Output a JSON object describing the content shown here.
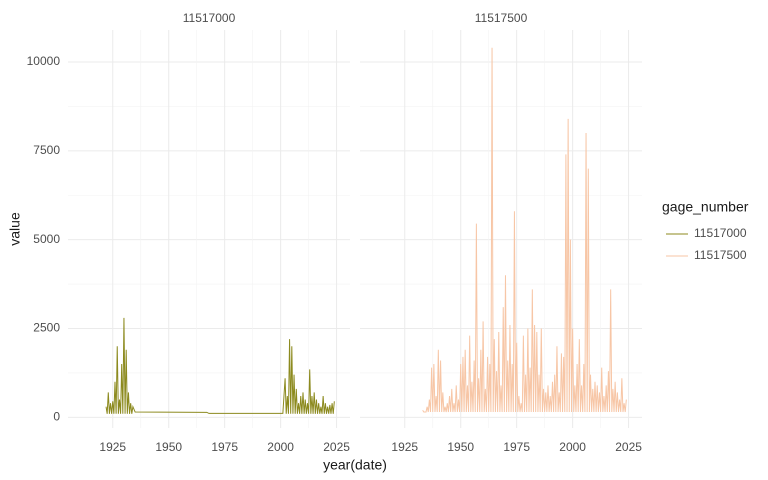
{
  "chart_data": {
    "type": "line",
    "xlabel": "year(date)",
    "ylabel": "value",
    "legend_title": "gage_number",
    "xlim": [
      1905,
      2031
    ],
    "xticks": [
      1925,
      1950,
      1975,
      2000,
      2025
    ],
    "ylim": [
      -300,
      10900
    ],
    "yticks": [
      0,
      2500,
      5000,
      7500,
      10000
    ],
    "grid": true,
    "legend": "right",
    "series": [
      {
        "name": "11517000",
        "color": "#8c8a1e",
        "x": [
          1922,
          1922.5,
          1923,
          1923.5,
          1924,
          1924.5,
          1925,
          1925.5,
          1926,
          1926.5,
          1927,
          1927.5,
          1928,
          1928.5,
          1929,
          1929.5,
          1930,
          1930.5,
          1931,
          1931.5,
          1932,
          1932.5,
          1933,
          1933.5,
          1934,
          1935,
          1967,
          1968,
          2001,
          2002,
          2002.5,
          2003,
          2003.5,
          2004,
          2004.5,
          2005,
          2005.5,
          2006,
          2006.5,
          2007,
          2007.5,
          2008,
          2008.5,
          2009,
          2009.5,
          2010,
          2010.5,
          2011,
          2011.5,
          2012,
          2012.5,
          2013,
          2013.5,
          2014,
          2014.5,
          2015,
          2015.5,
          2016,
          2016.5,
          2017,
          2017.5,
          2018,
          2018.5,
          2019,
          2019.5,
          2020,
          2020.5,
          2021,
          2021.5,
          2022,
          2022.5,
          2023,
          2023.5,
          2024
        ],
        "values": [
          300,
          100,
          700,
          100,
          400,
          100,
          450,
          100,
          1000,
          100,
          2000,
          100,
          500,
          100,
          1500,
          100,
          2800,
          100,
          1900,
          100,
          700,
          100,
          400,
          100,
          300,
          150,
          140,
          110,
          110,
          1100,
          100,
          600,
          100,
          2200,
          100,
          2000,
          100,
          1200,
          100,
          800,
          100,
          400,
          100,
          600,
          100,
          700,
          100,
          500,
          100,
          400,
          100,
          1350,
          100,
          600,
          100,
          700,
          100,
          500,
          100,
          400,
          100,
          300,
          100,
          600,
          100,
          400,
          100,
          300,
          100,
          350,
          100,
          400,
          100,
          450
        ]
      },
      {
        "name": "11517500",
        "color": "#f7c6a6",
        "x": [
          1933,
          1933.5,
          1934,
          1934.5,
          1935,
          1935.5,
          1936,
          1936.5,
          1937,
          1937.5,
          1938,
          1938.5,
          1939,
          1939.5,
          1940,
          1940.5,
          1941,
          1941.5,
          1942,
          1942.5,
          1943,
          1943.5,
          1944,
          1944.5,
          1945,
          1945.5,
          1946,
          1946.5,
          1947,
          1947.5,
          1948,
          1948.5,
          1949,
          1949.5,
          1950,
          1950.5,
          1951,
          1951.5,
          1952,
          1952.5,
          1953,
          1953.5,
          1954,
          1954.5,
          1955,
          1955.5,
          1956,
          1956.5,
          1957,
          1957.5,
          1958,
          1958.5,
          1959,
          1959.5,
          1960,
          1960.5,
          1961,
          1961.5,
          1962,
          1962.5,
          1963,
          1963.5,
          1964,
          1964.5,
          1965,
          1965.5,
          1966,
          1966.5,
          1967,
          1967.5,
          1968,
          1968.5,
          1969,
          1969.5,
          1970,
          1970.5,
          1971,
          1971.5,
          1972,
          1972.5,
          1973,
          1973.5,
          1974,
          1974.5,
          1975,
          1975.5,
          1976,
          1976.5,
          1977,
          1977.5,
          1978,
          1978.5,
          1979,
          1979.5,
          1980,
          1980.5,
          1981,
          1981.5,
          1982,
          1982.5,
          1983,
          1983.5,
          1984,
          1984.5,
          1985,
          1985.5,
          1986,
          1986.5,
          1987,
          1987.5,
          1988,
          1988.5,
          1989,
          1989.5,
          1990,
          1990.5,
          1991,
          1991.5,
          1992,
          1992.5,
          1993,
          1993.5,
          1994,
          1994.5,
          1995,
          1995.5,
          1996,
          1996.5,
          1997,
          1997.5,
          1998,
          1998.5,
          1999,
          1999.5,
          2000,
          2000.5,
          2001,
          2001.5,
          2002,
          2002.5,
          2003,
          2003.5,
          2004,
          2004.5,
          2005,
          2005.5,
          2006,
          2006.5,
          2007,
          2007.5,
          2008,
          2008.5,
          2009,
          2009.5,
          2010,
          2010.5,
          2011,
          2011.5,
          2012,
          2012.5,
          2013,
          2013.5,
          2014,
          2014.5,
          2015,
          2015.5,
          2016,
          2016.5,
          2017,
          2017.5,
          2018,
          2018.5,
          2019,
          2019.5,
          2020,
          2020.5,
          2021,
          2021.5,
          2022,
          2022.5,
          2023,
          2023.5,
          2024
        ],
        "values": [
          200,
          150,
          150,
          150,
          300,
          150,
          500,
          150,
          1400,
          150,
          1500,
          150,
          600,
          150,
          1900,
          150,
          1600,
          150,
          700,
          150,
          300,
          150,
          400,
          150,
          600,
          150,
          800,
          150,
          400,
          150,
          900,
          150,
          500,
          150,
          1500,
          150,
          1700,
          150,
          1900,
          150,
          900,
          150,
          2300,
          150,
          1000,
          150,
          1600,
          150,
          5450,
          150,
          1100,
          150,
          1900,
          150,
          2700,
          150,
          800,
          150,
          1700,
          150,
          1500,
          150,
          10400,
          150,
          2200,
          150,
          1300,
          150,
          2400,
          150,
          900,
          150,
          3100,
          150,
          4000,
          150,
          1600,
          150,
          2600,
          150,
          1500,
          150,
          5800,
          150,
          2100,
          150,
          600,
          150,
          400,
          150,
          2300,
          150,
          1200,
          150,
          2500,
          150,
          1400,
          150,
          3600,
          150,
          2600,
          150,
          2400,
          150,
          1200,
          150,
          2500,
          150,
          800,
          150,
          700,
          150,
          900,
          150,
          600,
          150,
          1000,
          150,
          1200,
          150,
          2000,
          150,
          700,
          150,
          1800,
          150,
          1700,
          150,
          7400,
          150,
          8400,
          150,
          5000,
          150,
          2500,
          150,
          900,
          150,
          1500,
          150,
          2200,
          150,
          900,
          150,
          1500,
          150,
          8000,
          150,
          7000,
          150,
          1200,
          150,
          800,
          150,
          1000,
          150,
          900,
          150,
          700,
          150,
          1400,
          150,
          600,
          150,
          900,
          150,
          1300,
          150,
          3600,
          150,
          800,
          150,
          1000,
          150,
          700,
          150,
          500,
          150,
          1100,
          150,
          400,
          150,
          500
        ]
      }
    ]
  }
}
